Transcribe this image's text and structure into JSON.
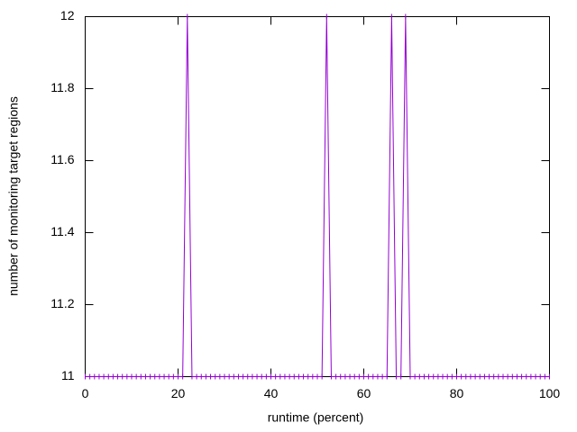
{
  "chart_data": {
    "type": "line",
    "xlabel": "runtime (percent)",
    "ylabel": "number of monitoring target regions",
    "x": [
      0,
      1,
      2,
      3,
      4,
      5,
      6,
      7,
      8,
      9,
      10,
      11,
      12,
      13,
      14,
      15,
      16,
      17,
      18,
      19,
      20,
      21,
      22,
      23,
      24,
      25,
      26,
      27,
      28,
      29,
      30,
      31,
      32,
      33,
      34,
      35,
      36,
      37,
      38,
      39,
      40,
      41,
      42,
      43,
      44,
      45,
      46,
      47,
      48,
      49,
      50,
      51,
      52,
      53,
      54,
      55,
      56,
      57,
      58,
      59,
      60,
      61,
      62,
      63,
      64,
      65,
      66,
      67,
      68,
      69,
      70,
      71,
      72,
      73,
      74,
      75,
      76,
      77,
      78,
      79,
      80,
      81,
      82,
      83,
      84,
      85,
      86,
      87,
      88,
      89,
      90,
      91,
      92,
      93,
      94,
      95,
      96,
      97,
      98,
      99,
      100
    ],
    "values": [
      11,
      11,
      11,
      11,
      11,
      11,
      11,
      11,
      11,
      11,
      11,
      11,
      11,
      11,
      11,
      11,
      11,
      11,
      11,
      11,
      11,
      11,
      12,
      11,
      11,
      11,
      11,
      11,
      11,
      11,
      11,
      11,
      11,
      11,
      11,
      11,
      11,
      11,
      11,
      11,
      11,
      11,
      11,
      11,
      11,
      11,
      11,
      11,
      11,
      11,
      11,
      11,
      12,
      11,
      11,
      11,
      11,
      11,
      11,
      11,
      11,
      11,
      11,
      11,
      11,
      11,
      12,
      11,
      11,
      12,
      11,
      11,
      11,
      11,
      11,
      11,
      11,
      11,
      11,
      11,
      11,
      11,
      11,
      11,
      11,
      11,
      11,
      11,
      11,
      11,
      11,
      11,
      11,
      11,
      11,
      11,
      11,
      11,
      11,
      11,
      11
    ],
    "color": "#9400d3",
    "xlim": [
      0,
      100
    ],
    "xticks": [
      0,
      20,
      40,
      60,
      80,
      100
    ],
    "ylim": [
      11,
      12
    ],
    "yticks": [
      11,
      11.2,
      11.4,
      11.6,
      11.8,
      12
    ]
  }
}
